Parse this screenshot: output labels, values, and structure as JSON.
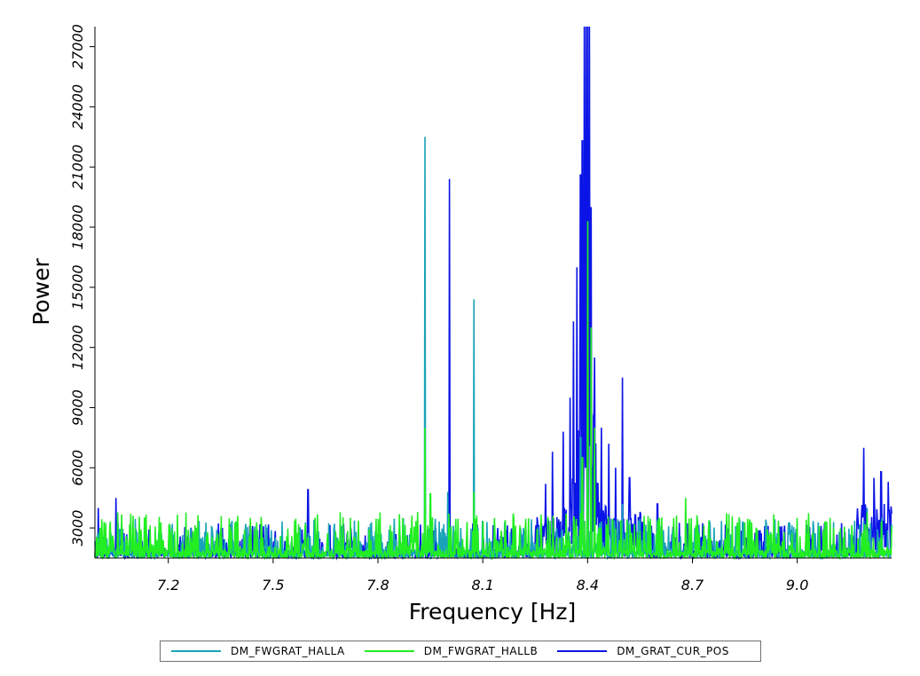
{
  "chart_data": {
    "type": "line",
    "xlabel": "Frequency [Hz]",
    "ylabel": "Power",
    "xlim": [
      6.99,
      9.27
    ],
    "ylim": [
      1500,
      28000
    ],
    "x_ticks": [
      7.2,
      7.5,
      7.8,
      8.1,
      8.4,
      8.7,
      9.0
    ],
    "x_tick_labels": [
      "7.2",
      "7.5",
      "7.8",
      "8.1",
      "8.4",
      "8.7",
      "9.0"
    ],
    "y_ticks": [
      3000,
      6000,
      9000,
      12000,
      15000,
      18000,
      21000,
      24000,
      27000
    ],
    "y_tick_labels": [
      "3000",
      "6000",
      "9000",
      "12000",
      "15000",
      "18000",
      "21000",
      "24000",
      "27000"
    ],
    "grid": false,
    "legend_position": "bottom",
    "series": [
      {
        "name": "DM_FWGRAT_HALLA",
        "color": "#1aa3b8",
        "baseline": [
          1500,
          3000
        ],
        "peaks": [
          [
            7.935,
            22500
          ],
          [
            8.0,
            4800
          ],
          [
            8.075,
            14400
          ],
          [
            8.38,
            7500
          ],
          [
            8.4,
            8500
          ],
          [
            8.42,
            6500
          ],
          [
            8.5,
            4200
          ],
          [
            9.2,
            4000
          ]
        ]
      },
      {
        "name": "DM_FWGRAT_HALLB",
        "color": "#22ee22",
        "baseline": [
          1500,
          3200
        ],
        "peaks": [
          [
            7.935,
            8000
          ],
          [
            7.95,
            4700
          ],
          [
            8.075,
            4800
          ],
          [
            8.385,
            6500
          ],
          [
            8.4,
            18300
          ],
          [
            8.41,
            13000
          ],
          [
            8.42,
            8000
          ],
          [
            8.68,
            4500
          ]
        ]
      },
      {
        "name": "DM_GRAT_CUR_POS",
        "color": "#0a14e6",
        "baseline": [
          1500,
          2800
        ],
        "peaks": [
          [
            7.0,
            4000
          ],
          [
            7.05,
            4500
          ],
          [
            7.6,
            4900
          ],
          [
            8.005,
            20400
          ],
          [
            8.28,
            5200
          ],
          [
            8.3,
            6800
          ],
          [
            8.33,
            7800
          ],
          [
            8.35,
            9500
          ],
          [
            8.36,
            13300
          ],
          [
            8.37,
            16000
          ],
          [
            8.38,
            20600
          ],
          [
            8.385,
            22300
          ],
          [
            8.39,
            28000
          ],
          [
            8.395,
            28000
          ],
          [
            8.4,
            28000
          ],
          [
            8.405,
            28000
          ],
          [
            8.41,
            19000
          ],
          [
            8.42,
            11500
          ],
          [
            8.44,
            8000
          ],
          [
            8.46,
            7200
          ],
          [
            8.48,
            6000
          ],
          [
            8.5,
            10500
          ],
          [
            8.52,
            5500
          ],
          [
            8.55,
            3800
          ],
          [
            8.6,
            4200
          ],
          [
            9.19,
            7000
          ],
          [
            9.22,
            5500
          ],
          [
            9.24,
            5800
          ],
          [
            9.26,
            5300
          ]
        ]
      }
    ]
  }
}
